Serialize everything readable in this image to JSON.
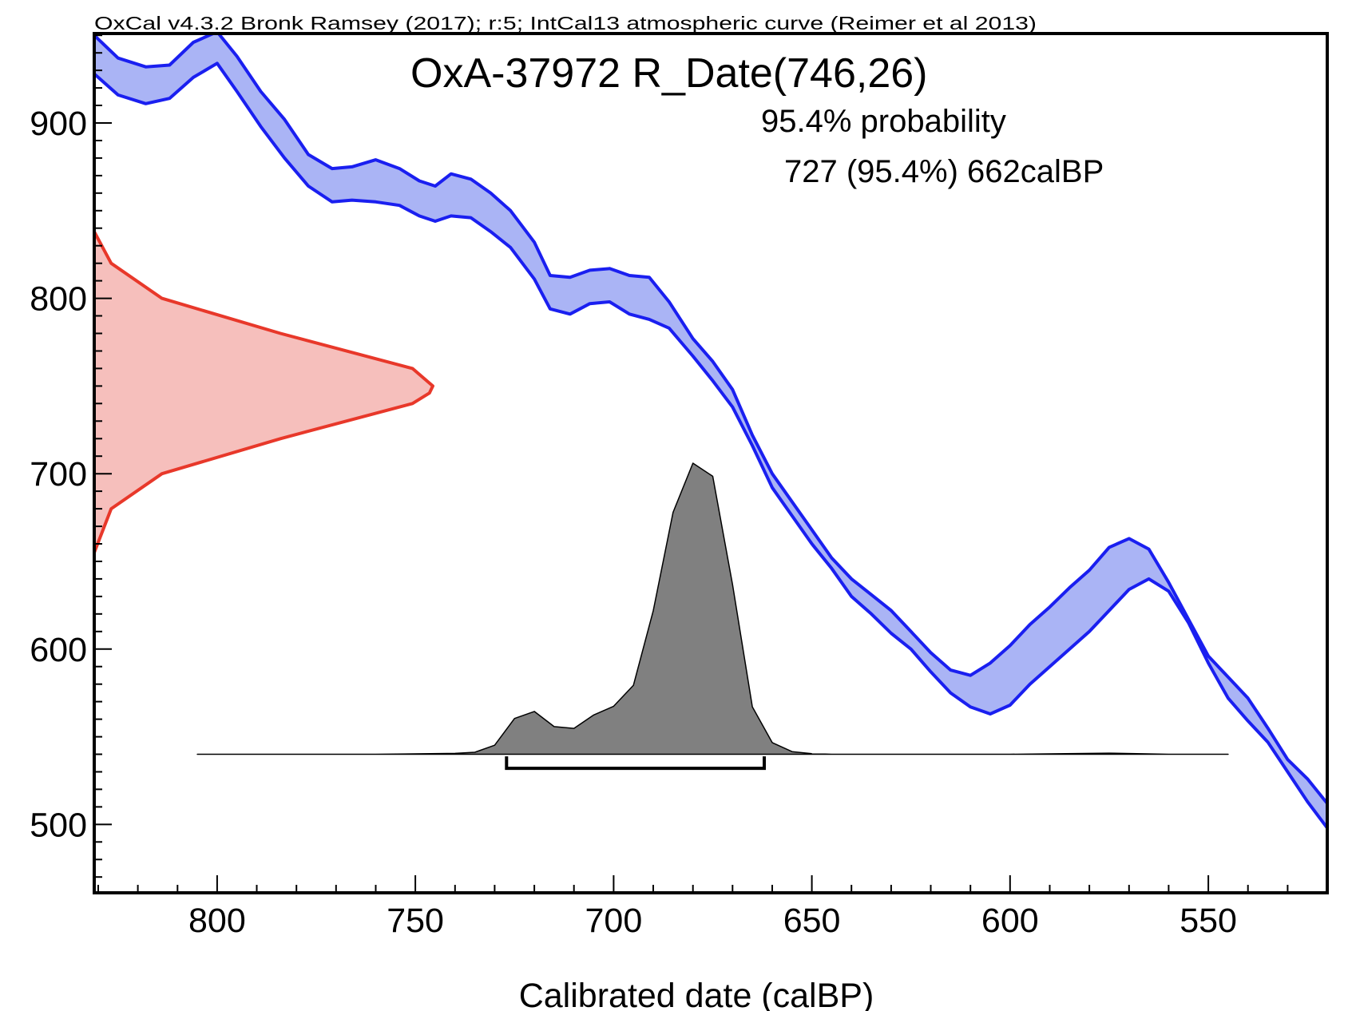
{
  "chart_data": {
    "type": "area",
    "header": "OxCal v4.3.2 Bronk Ramsey (2017); r:5; IntCal13 atmospheric curve (Reimer et al 2013)",
    "title": "OxA-37972 R_Date(746,26)",
    "probability_label": "95.4% probability",
    "range_label": "727 (95.4%) 662calBP",
    "xlabel": "Calibrated date (calBP)",
    "ylabel": "",
    "x_reversed": true,
    "xlim": [
      831,
      520
    ],
    "ylim": [
      461,
      951
    ],
    "x_ticks": [
      800,
      750,
      700,
      650,
      600,
      550
    ],
    "y_ticks": [
      500,
      600,
      700,
      800,
      900
    ],
    "colors": {
      "curve_stroke": "#1a1ff0",
      "curve_fill": "#aab4f5",
      "radiocarbon_stroke": "#e8382a",
      "radiocarbon_fill": "#f6bfbc",
      "calibrated_fill": "#808080",
      "frame": "#000000"
    },
    "calibration_curve": {
      "name": "IntCal13",
      "x": [
        831,
        825,
        818,
        812,
        806,
        800,
        795,
        789,
        783,
        777,
        771,
        766,
        760,
        754,
        749,
        745,
        741,
        736,
        731,
        726,
        720,
        716,
        711,
        706,
        701,
        696,
        691,
        686,
        680,
        675,
        670,
        665,
        660,
        655,
        650,
        645,
        640,
        635,
        630,
        625,
        620,
        615,
        610,
        605,
        600,
        595,
        590,
        585,
        580,
        575,
        570,
        565,
        560,
        555,
        550,
        545,
        540,
        535,
        530,
        525,
        520
      ],
      "upper": [
        950,
        937,
        932,
        933,
        946,
        952,
        938,
        918,
        902,
        882,
        874,
        875,
        879,
        874,
        867,
        864,
        871,
        868,
        860,
        850,
        832,
        813,
        812,
        816,
        817,
        813,
        812,
        798,
        777,
        764,
        748,
        722,
        700,
        684,
        668,
        652,
        640,
        631,
        622,
        610,
        598,
        588,
        585,
        592,
        602,
        614,
        624,
        635,
        645,
        658,
        663,
        657,
        638,
        617,
        596,
        584,
        572,
        555,
        537,
        526,
        512
      ],
      "lower": [
        928,
        916,
        911,
        914,
        926,
        934,
        918,
        898,
        880,
        864,
        855,
        856,
        855,
        853,
        847,
        844,
        847,
        846,
        838,
        829,
        811,
        794,
        791,
        797,
        798,
        791,
        788,
        783,
        767,
        753,
        738,
        716,
        692,
        676,
        660,
        646,
        630,
        620,
        609,
        600,
        587,
        575,
        567,
        563,
        568,
        580,
        590,
        600,
        610,
        622,
        634,
        640,
        633,
        615,
        592,
        572,
        559,
        547,
        530,
        513,
        498
      ]
    },
    "radiocarbon_distribution": {
      "mean": 746,
      "sd": 26,
      "y": [
        838,
        820,
        800,
        780,
        760,
        750,
        746,
        740,
        720,
        700,
        680,
        655
      ],
      "density": [
        0.0,
        0.05,
        0.2,
        0.55,
        0.94,
        1.0,
        0.99,
        0.94,
        0.55,
        0.2,
        0.05,
        0.0
      ]
    },
    "calibrated_distribution": {
      "x": [
        805,
        800,
        780,
        760,
        740,
        735,
        730,
        725,
        720,
        715,
        710,
        705,
        700,
        695,
        690,
        685,
        680,
        675,
        670,
        665,
        660,
        655,
        650,
        645,
        620,
        600,
        575,
        560,
        545
      ],
      "density": [
        0.0,
        0.0,
        0.0,
        0.0,
        0.003,
        0.007,
        0.031,
        0.123,
        0.147,
        0.095,
        0.089,
        0.135,
        0.165,
        0.237,
        0.493,
        0.831,
        1.0,
        0.955,
        0.583,
        0.163,
        0.04,
        0.009,
        0.002,
        0.0,
        0.0,
        0.0,
        0.004,
        0.0,
        0.0
      ]
    },
    "range_95_4": [
      727,
      662
    ]
  }
}
